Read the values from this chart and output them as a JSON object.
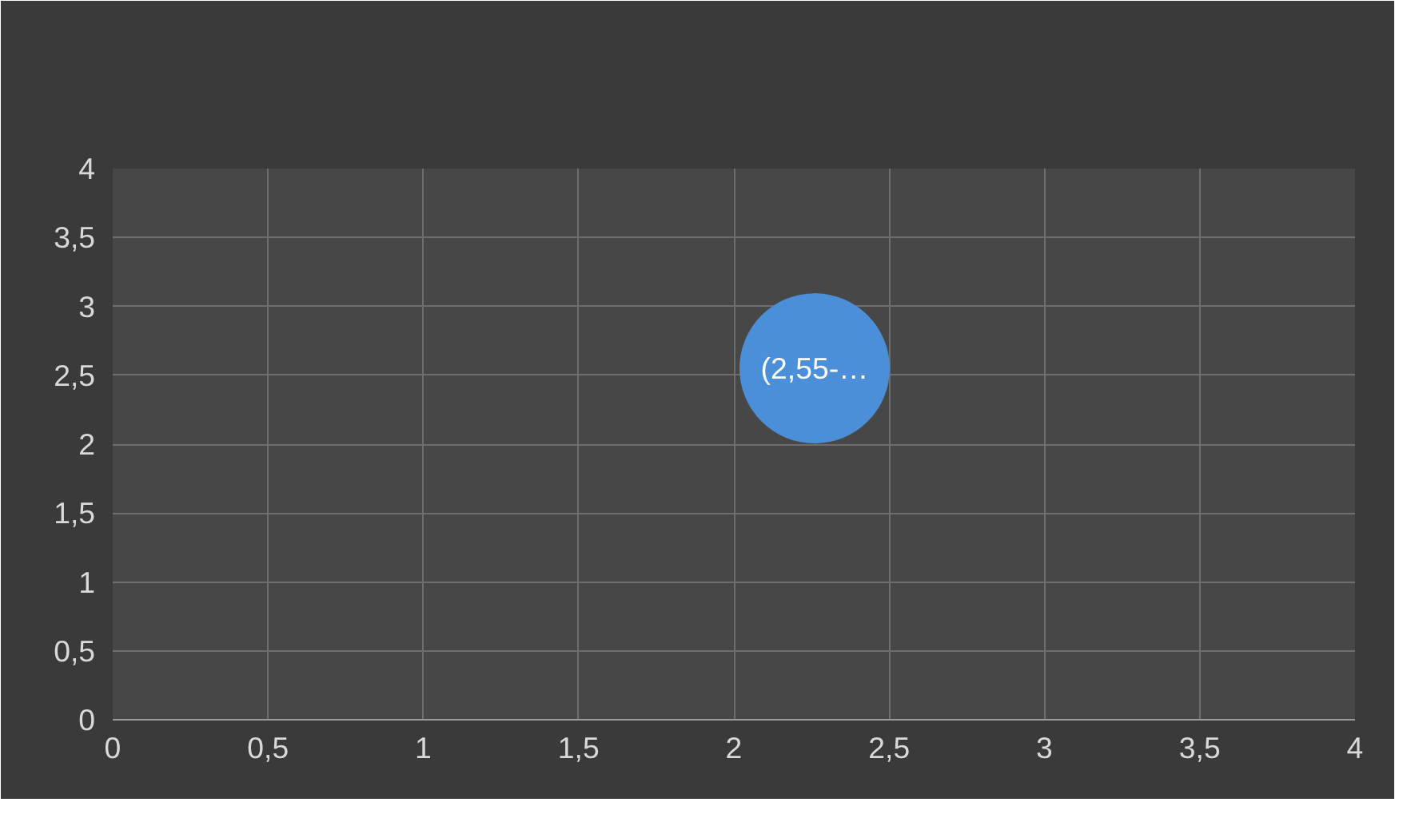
{
  "chart_data": {
    "type": "bubble",
    "x": [
      2.26
    ],
    "values": [
      2.55
    ],
    "sizes": [
      1
    ],
    "color": "#4a8fd8",
    "annotations": [
      {
        "text": "(2,55-…",
        "x": 2.26,
        "y": 2.55
      }
    ],
    "xlim": [
      0,
      4
    ],
    "ylim": [
      0,
      4
    ],
    "xticks": [
      0,
      {
        "value": 0.5,
        "label": "0,5"
      },
      1,
      {
        "value": 1.5,
        "label": "1,5"
      },
      2,
      {
        "value": 2.5,
        "label": "2,5"
      },
      3,
      {
        "value": 3.5,
        "label": "3,5"
      },
      4
    ],
    "yticks": [
      0,
      {
        "value": 0.5,
        "label": "0,5"
      },
      1,
      {
        "value": 1.5,
        "label": "1,5"
      },
      2,
      {
        "value": 2.5,
        "label": "2,5"
      },
      3,
      {
        "value": 3.5,
        "label": "3,5"
      },
      4
    ],
    "grid": true
  }
}
